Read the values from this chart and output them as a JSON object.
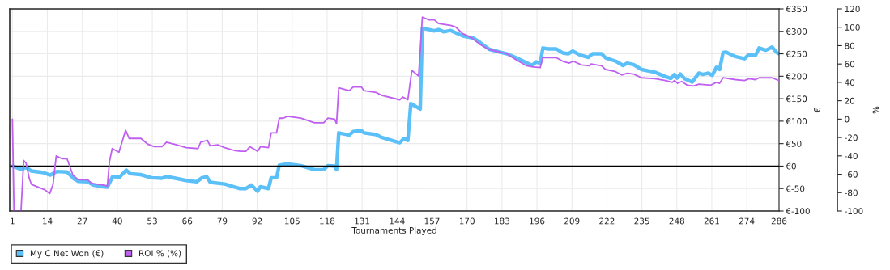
{
  "chart_data": {
    "type": "line",
    "xlabel": "Tournaments Played",
    "ylabel": "€",
    "y2label": "%",
    "xlim": [
      0,
      286
    ],
    "xticks": [
      1,
      14,
      27,
      40,
      53,
      66,
      79,
      92,
      105,
      118,
      131,
      144,
      157,
      170,
      183,
      196,
      209,
      222,
      235,
      248,
      261,
      274,
      286
    ],
    "ylim": [
      -100,
      350
    ],
    "yticks": [
      {
        "value": -100,
        "label": "€-100"
      },
      {
        "value": -50,
        "label": "€-50"
      },
      {
        "value": 0,
        "label": "€0"
      },
      {
        "value": 50,
        "label": "€50"
      },
      {
        "value": 100,
        "label": "€100"
      },
      {
        "value": 150,
        "label": "€150"
      },
      {
        "value": 200,
        "label": "€200"
      },
      {
        "value": 250,
        "label": "€250"
      },
      {
        "value": 300,
        "label": "€300"
      },
      {
        "value": 350,
        "label": "€350"
      }
    ],
    "y2lim": [
      -100,
      120
    ],
    "y2ticks": [
      -100,
      -80,
      -60,
      -40,
      -20,
      0,
      20,
      40,
      60,
      80,
      100,
      120
    ],
    "grid": true,
    "legend": "bottom left",
    "ref_lines": [
      {
        "axis": "y",
        "value": 0,
        "color": "#000000"
      }
    ],
    "series": [
      {
        "name": "My C Net Won (€)",
        "color": "#5bc0f8",
        "x": [
          1,
          4.2,
          6.1,
          8.1,
          12.1,
          15.1,
          17.5,
          21.3,
          23.8,
          25.5,
          29,
          31,
          33.5,
          36.3,
          38.3,
          40.8,
          43.3,
          44.8,
          48.7,
          52.7,
          56.6,
          58.3,
          65.6,
          69.5,
          71.5,
          73.3,
          74.5,
          79.9,
          85.4,
          87.8,
          89.8,
          92.1,
          93.2,
          96.2,
          97.2,
          99.2,
          100.2,
          103.2,
          108.2,
          113.3,
          116.7,
          118.3,
          120.8,
          121.5,
          122.3,
          126.2,
          127.7,
          130.7,
          131.7,
          136.2,
          138.2,
          145,
          146.5,
          148,
          149.1,
          152.6,
          153.4,
          155.9,
          157.9,
          159.4,
          161.4,
          163.9,
          166.4,
          168.9,
          172.4,
          174.9,
          178.3,
          184.8,
          188.3,
          192.2,
          194.2,
          195.7,
          197.2,
          198.2,
          200.2,
          203.1,
          205.6,
          207.6,
          209.3,
          212.1,
          215.1,
          216.6,
          220,
          221.5,
          225.5,
          228,
          229.5,
          231.9,
          234.9,
          239.9,
          243.8,
          245.8,
          247.1,
          248.1,
          249.3,
          250.8,
          253.7,
          256.2,
          257.7,
          259.7,
          261.2,
          262.7,
          263.9,
          265.2,
          266.2,
          269.7,
          273.2,
          274.7,
          277.2,
          278.6,
          281.1,
          283.4,
          285.1,
          286
        ],
        "values": [
          0,
          -7,
          -3,
          -11,
          -14,
          -20,
          -12,
          -13,
          -28,
          -34,
          -35,
          -42,
          -45,
          -47,
          -23,
          -25,
          -9,
          -17,
          -19,
          -26,
          -27,
          -23,
          -32,
          -35,
          -26,
          -24,
          -36,
          -40,
          -50,
          -50,
          -42,
          -56,
          -46,
          -50,
          -26,
          -26,
          2,
          5,
          1,
          -8,
          -8,
          1,
          0,
          -8,
          74,
          69,
          77,
          79,
          74,
          70,
          64,
          52,
          61,
          57,
          139,
          127,
          307,
          304,
          301,
          304,
          299,
          302,
          295,
          289,
          285,
          275,
          260,
          250,
          241,
          230,
          224,
          232,
          229,
          263,
          261,
          261,
          252,
          250,
          256,
          247,
          242,
          250,
          250,
          241,
          233,
          224,
          229,
          226,
          215,
          209,
          199,
          195,
          204,
          196,
          205,
          195,
          187,
          207,
          204,
          207,
          202,
          220,
          215,
          253,
          254,
          244,
          239,
          248,
          246,
          263,
          258,
          265,
          253,
          250
        ]
      },
      {
        "name": "ROI % (%)",
        "color": "#c060f0",
        "axis": "y2",
        "x": [
          1,
          1.6,
          4.2,
          5.2,
          6.1,
          7.3,
          8.1,
          13.1,
          14.9,
          16.1,
          17.3,
          19.3,
          21.3,
          23.5,
          25.5,
          29,
          30.4,
          35.3,
          36.3,
          37.1,
          38.1,
          40.6,
          43.1,
          44.4,
          48.8,
          51.2,
          53.7,
          56.6,
          58.3,
          62,
          65.6,
          70,
          71,
          73.5,
          74.5,
          77.4,
          79.9,
          83.4,
          85.8,
          87.8,
          89.3,
          92.2,
          93.2,
          96.2,
          97.2,
          99.2,
          100.2,
          101.7,
          103.2,
          108.2,
          113.3,
          116.7,
          118.3,
          120.8,
          121.5,
          122.3,
          126.2,
          127.7,
          130.7,
          131.7,
          136.2,
          138.2,
          145,
          146.1,
          148,
          149.5,
          152,
          153.4,
          155.9,
          157.9,
          159.4,
          163.9,
          165.9,
          168.4,
          170,
          172,
          175,
          178,
          185,
          188,
          192.2,
          194.2,
          197.2,
          198.2,
          203.1,
          205.6,
          208,
          209.5,
          212.6,
          215.6,
          216.1,
          220,
          221.5,
          225,
          227.5,
          229.5,
          231.9,
          234.9,
          239.9,
          243.8,
          246.3,
          247.1,
          248.3,
          249.8,
          251.8,
          254.2,
          256.2,
          260.7,
          262.7,
          263.9,
          265.2,
          269.7,
          273.2,
          274.7,
          277.2,
          278.6,
          281.1,
          283.4,
          285.1,
          286
        ],
        "values": [
          0,
          -100,
          -100,
          -45,
          -48,
          -65,
          -71,
          -77,
          -81,
          -71,
          -40,
          -43,
          -43,
          -61,
          -66,
          -66,
          -70,
          -72,
          -73,
          -46,
          -32,
          -36,
          -12,
          -21,
          -21,
          -27,
          -30,
          -30,
          -25,
          -28,
          -31,
          -32,
          -25,
          -23,
          -29,
          -28,
          -31,
          -34,
          -35,
          -35,
          -30,
          -35,
          -30,
          -31,
          -15,
          -15,
          1,
          1,
          3,
          1,
          -4,
          -4,
          1,
          0,
          -5,
          34,
          31,
          35,
          35,
          31,
          29,
          26,
          21,
          24,
          21,
          53,
          47,
          111,
          108,
          108,
          104,
          102,
          100,
          93,
          91,
          88,
          81,
          76,
          71,
          65,
          58,
          57,
          56,
          67,
          67,
          63,
          61,
          63,
          59,
          58,
          60,
          58,
          54,
          52,
          48,
          50,
          49,
          45,
          44,
          42,
          40,
          42,
          39,
          41,
          37,
          36,
          38,
          37,
          40,
          39,
          45,
          43,
          42,
          44,
          43,
          45,
          45,
          45,
          43,
          42
        ]
      }
    ]
  }
}
